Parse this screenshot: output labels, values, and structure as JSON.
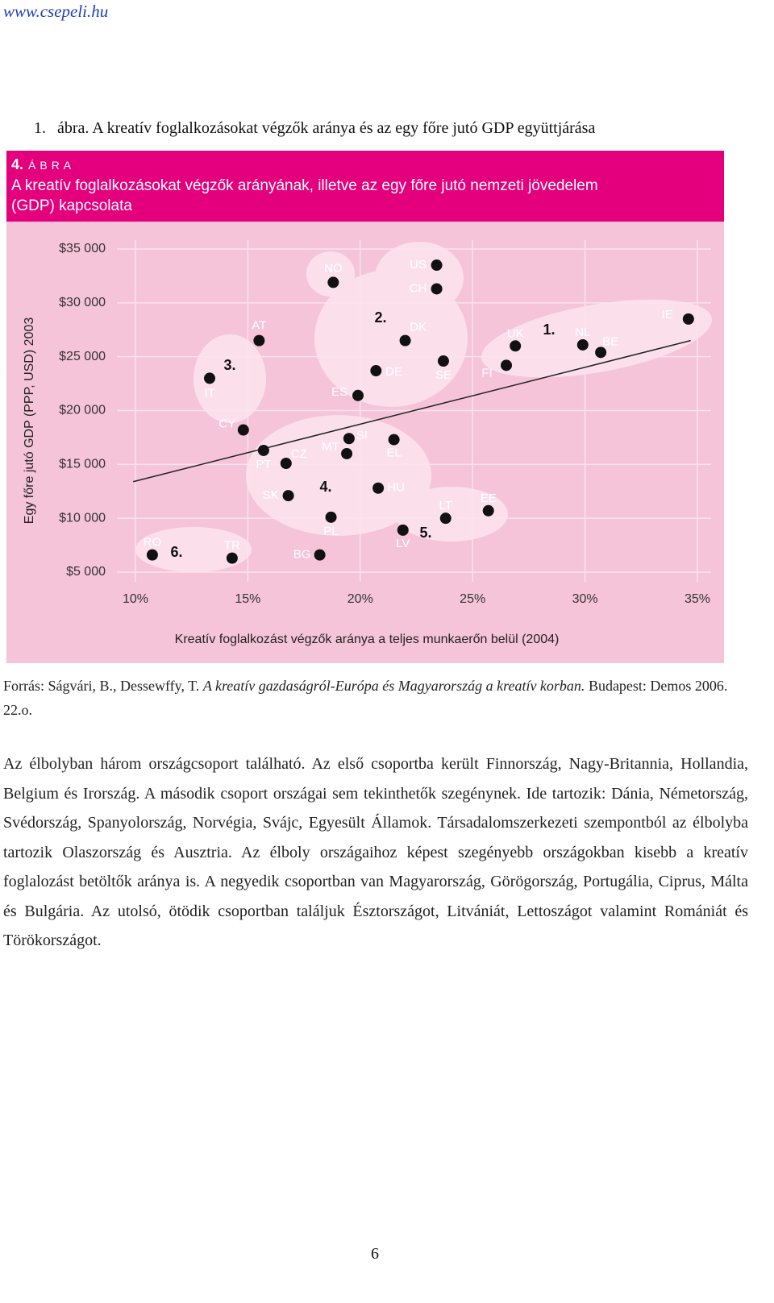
{
  "header": {
    "link": "www.csepeli.hu"
  },
  "caption_number": "1.",
  "caption": "ábra. A kreatív foglalkozásokat végzők aránya és az egy főre jutó GDP együttjárása",
  "chart_data": {
    "type": "scatter",
    "figure_number": "4.",
    "figure_label": "ÁBRA",
    "title_lines": [
      "A kreatív foglalkozásokat végzők arányának, illetve az egy főre jutó nemzeti jövedelem",
      "(GDP) kapcsolata"
    ],
    "x_label": "Kreatív foglalkozást végzők aránya a teljes munkaerőn belül (2004)",
    "y_label": "Egy főre jutó GDP (PPP, USD) 2003",
    "labels": [
      "RO",
      "TR",
      "BG",
      "PL",
      "LV",
      "LT",
      "EE",
      "SK",
      "HU",
      "CZ",
      "PT",
      "MT",
      "SI",
      "EL",
      "CY",
      "ES",
      "IT",
      "DE",
      "AT",
      "DK",
      "SE",
      "FI",
      "UK",
      "NL",
      "BE",
      "IE",
      "NO",
      "US",
      "CH"
    ],
    "x": [
      10.75,
      14.3,
      18.2,
      18.7,
      21.9,
      23.8,
      25.7,
      16.8,
      20.8,
      16.7,
      15.7,
      19.4,
      19.5,
      21.5,
      14.8,
      19.9,
      13.3,
      20.7,
      15.5,
      22.0,
      23.7,
      26.5,
      26.9,
      29.9,
      30.7,
      34.6,
      18.8,
      23.4,
      23.4
    ],
    "y": [
      6600,
      6300,
      6600,
      10100,
      8900,
      10000,
      10700,
      12100,
      12800,
      15100,
      16300,
      16000,
      17400,
      17300,
      18200,
      21400,
      23000,
      23700,
      26500,
      26500,
      24600,
      24200,
      26000,
      26100,
      25400,
      28500,
      31900,
      33500,
      31300
    ],
    "color": "#111111",
    "xlim": [
      10,
      35
    ],
    "ylim": [
      5000,
      35000
    ],
    "xticks": [
      {
        "value": 10,
        "label": "10%"
      },
      {
        "value": 15,
        "label": "15%"
      },
      {
        "value": 20,
        "label": "20%"
      },
      {
        "value": 25,
        "label": "25%"
      },
      {
        "value": 30,
        "label": "30%"
      },
      {
        "value": 35,
        "label": "35%"
      }
    ],
    "yticks": [
      {
        "value": 5000,
        "label": "$5 000"
      },
      {
        "value": 10000,
        "label": "$10 000"
      },
      {
        "value": 15000,
        "label": "$15 000"
      },
      {
        "value": 20000,
        "label": "$20 000"
      },
      {
        "value": 25000,
        "label": "$25 000"
      },
      {
        "value": 30000,
        "label": "$30 000"
      },
      {
        "value": 35000,
        "label": "$35 000"
      }
    ],
    "grid": true,
    "trend_line": {
      "x": [
        9.9,
        34.7
      ],
      "y": [
        13400,
        26500
      ]
    },
    "annotations": [
      "1.",
      "2.",
      "3.",
      "4.",
      "5.",
      "6."
    ]
  },
  "source": {
    "prefix": "Forrás: Ságvári, B., Dessewffy, T. ",
    "title": "A kreatív gazdaságról-Európa és Magyarország a kreatív korban.",
    "suffix": " Budapest: Demos 2006. 22.o."
  },
  "body": "Az élbolyban három országcsoport található. Az első csoportba került Finnország, Nagy-Britannia, Hollandia, Belgium és Irország.  A második csoport országai sem tekinthetők szegénynek. Ide tartozik: Dánia, Németország, Svédország, Spanyolország, Norvégia, Svájc, Egyesült Államok. Társadalomszerkezeti szempontból az élbolyba tartozik Olaszország és Ausztria.  Az élboly országaihoz képest szegényebb országokban kisebb a kreatív foglalozást betöltők aránya is. A negyedik csoportban van Magyarország, Görögország, Portugália, Ciprus, Málta és Bulgária. Az utolsó, ötödik csoportban találjuk Észtországot, Litvániát, Lettoszágot valamint Romániát és Törökországot.",
  "page_number": "6"
}
